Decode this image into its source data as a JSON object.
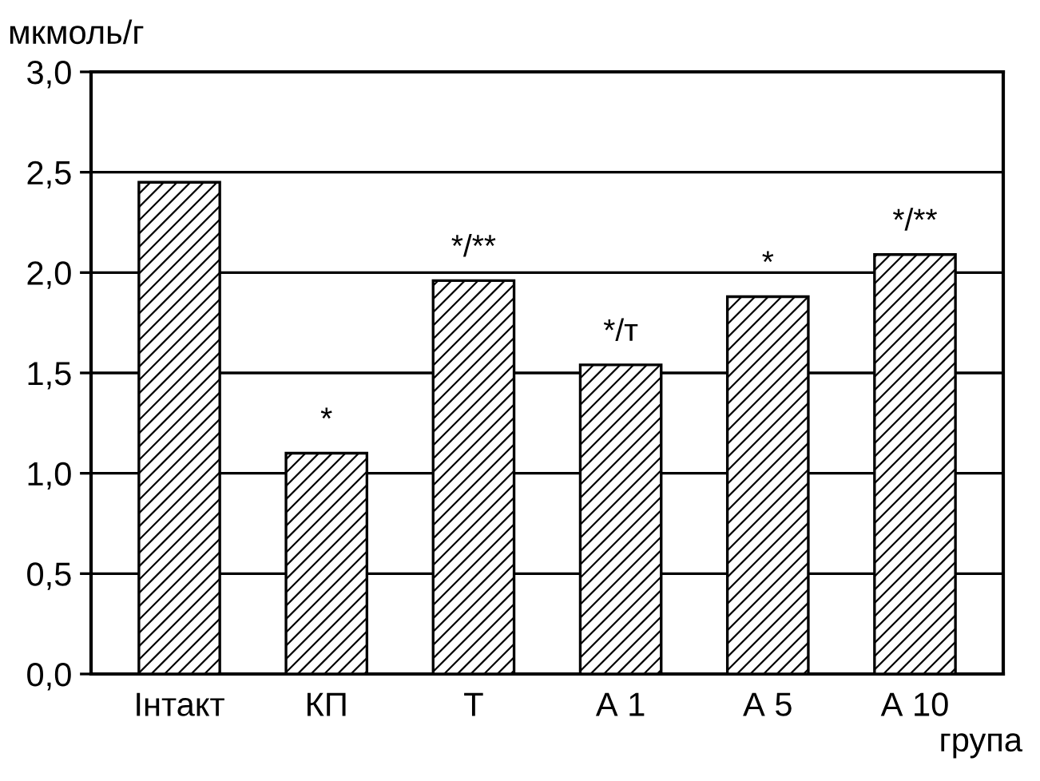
{
  "chart_data": {
    "type": "bar",
    "ylabel": "мкмоль/г",
    "xlabel": "група",
    "categories": [
      "Інтакт",
      "КП",
      "Т",
      "А 1",
      "А 5",
      "А 10"
    ],
    "values": [
      2.45,
      1.1,
      1.96,
      1.54,
      1.88,
      2.09
    ],
    "color": "#000000",
    "ylim": [
      0,
      3
    ],
    "yticks": [
      {
        "value": 0,
        "label": "0,0"
      },
      {
        "value": 0.5,
        "label": "0,5"
      },
      {
        "value": 1,
        "label": "1,0"
      },
      {
        "value": 1.5,
        "label": "1,5"
      },
      {
        "value": 2,
        "label": "2,0"
      },
      {
        "value": 2.5,
        "label": "2,5"
      },
      {
        "value": 3,
        "label": "3,0"
      }
    ],
    "grid": "y",
    "annotations": [
      {
        "text": "*",
        "x": "КП",
        "y": 1.1
      },
      {
        "text": "*/**",
        "x": "Т",
        "y": 1.96
      },
      {
        "text": "*/т",
        "x": "А 1",
        "y": 1.54
      },
      {
        "text": "*",
        "x": "А 5",
        "y": 1.88
      },
      {
        "text": "*/**",
        "x": "А 10",
        "y": 2.09
      }
    ]
  }
}
